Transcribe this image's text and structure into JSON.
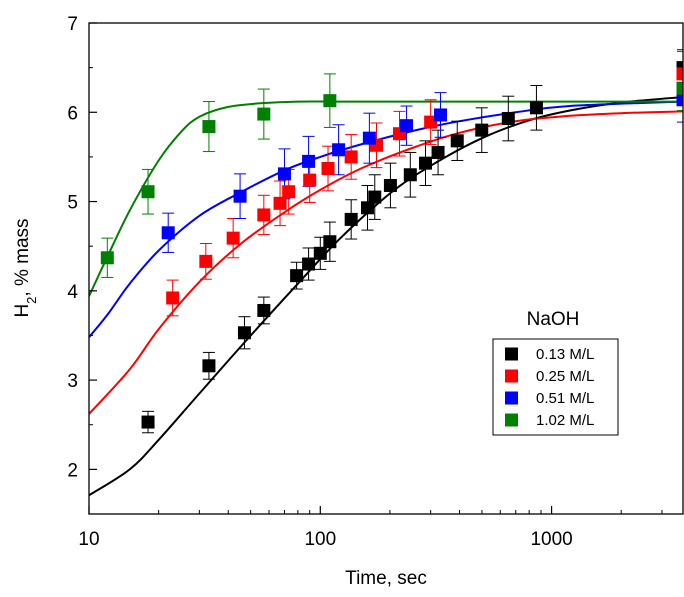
{
  "chart_data": {
    "type": "scatter",
    "xlabel": "Time, sec",
    "ylabel": "H₂, % mass",
    "ylabel_main": "H",
    "ylabel_sub": "2",
    "ylabel_rest": ", % mass",
    "x_scale": "log",
    "xlim": [
      10,
      3700
    ],
    "ylim": [
      1.5,
      7
    ],
    "x_ticks": [
      10,
      100,
      1000
    ],
    "x_tick_labels": [
      "10",
      "100",
      "1000"
    ],
    "y_ticks": [
      2,
      3,
      4,
      5,
      6,
      7
    ],
    "y_tick_labels": [
      "2",
      "3",
      "4",
      "5",
      "6",
      "7"
    ],
    "grid": false,
    "legend_title": "NaOH",
    "legend_position": "center-right",
    "series": [
      {
        "name": "0.13 M/L",
        "color": "#000000",
        "x": [
          18,
          33,
          47,
          57,
          79,
          89,
          100,
          110,
          136,
          160,
          172,
          201,
          245,
          285,
          323,
          391,
          499,
          650,
          860,
          3700
        ],
        "y": [
          2.53,
          3.16,
          3.53,
          3.78,
          4.17,
          4.3,
          4.42,
          4.55,
          4.8,
          4.93,
          5.05,
          5.18,
          5.3,
          5.43,
          5.55,
          5.68,
          5.8,
          5.93,
          6.05,
          6.5
        ],
        "err": [
          0.12,
          0.15,
          0.18,
          0.15,
          0.15,
          0.18,
          0.18,
          0.22,
          0.22,
          0.25,
          0.25,
          0.25,
          0.25,
          0.25,
          0.25,
          0.22,
          0.25,
          0.25,
          0.25,
          0.2
        ],
        "fit_x": [
          10,
          15,
          20,
          30,
          50,
          80,
          120,
          200,
          300,
          500,
          800,
          1200,
          2000,
          3700
        ],
        "fit_y": [
          1.71,
          2.0,
          2.33,
          2.85,
          3.5,
          4.08,
          4.57,
          5.09,
          5.4,
          5.71,
          5.91,
          6.02,
          6.11,
          6.17
        ]
      },
      {
        "name": "0.25 M/L",
        "color": "#ff0000",
        "x": [
          23,
          32,
          42,
          57,
          67,
          73,
          90,
          108,
          136,
          175,
          220,
          300,
          3700
        ],
        "y": [
          3.92,
          4.33,
          4.59,
          4.85,
          4.98,
          5.11,
          5.24,
          5.37,
          5.5,
          5.63,
          5.76,
          5.89,
          6.43
        ],
        "err": [
          0.2,
          0.2,
          0.22,
          0.22,
          0.25,
          0.25,
          0.25,
          0.25,
          0.25,
          0.25,
          0.25,
          0.25,
          0.25
        ],
        "fit_x": [
          10,
          15,
          20,
          30,
          45,
          70,
          100,
          150,
          250,
          400,
          700,
          1200,
          2000,
          3700
        ],
        "fit_y": [
          2.62,
          3.12,
          3.57,
          4.1,
          4.52,
          4.88,
          5.13,
          5.37,
          5.6,
          5.77,
          5.9,
          5.96,
          5.99,
          6.01
        ]
      },
      {
        "name": "0.51 M/L",
        "color": "#0000ff",
        "x": [
          22,
          45,
          70,
          89,
          120,
          163,
          236,
          331,
          3700
        ],
        "y": [
          4.65,
          5.06,
          5.31,
          5.45,
          5.58,
          5.71,
          5.85,
          5.97,
          6.14
        ],
        "err": [
          0.22,
          0.25,
          0.28,
          0.28,
          0.28,
          0.28,
          0.22,
          0.25,
          0.25
        ],
        "fit_x": [
          10,
          12,
          15,
          20,
          30,
          45,
          70,
          100,
          150,
          250,
          400,
          700,
          1200,
          3700
        ],
        "fit_y": [
          3.48,
          3.73,
          4.08,
          4.45,
          4.84,
          5.1,
          5.35,
          5.5,
          5.64,
          5.79,
          5.9,
          6.0,
          6.07,
          6.12
        ]
      },
      {
        "name": "1.02 M/L",
        "color": "#008000",
        "x": [
          12,
          18,
          33,
          57,
          110,
          3700
        ],
        "y": [
          4.37,
          5.11,
          5.84,
          5.98,
          6.13,
          6.27
        ],
        "err": [
          0.22,
          0.25,
          0.28,
          0.28,
          0.3,
          0.25
        ],
        "fit_x": [
          10,
          12,
          15,
          20,
          25,
          30,
          40,
          55,
          80,
          120,
          200,
          3700
        ],
        "fit_y": [
          3.94,
          4.38,
          4.9,
          5.46,
          5.78,
          5.95,
          6.06,
          6.1,
          6.12,
          6.12,
          6.12,
          6.12
        ]
      }
    ]
  }
}
